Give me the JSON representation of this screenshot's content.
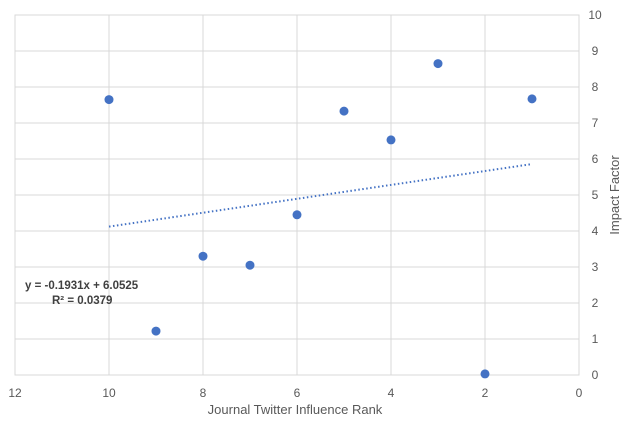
{
  "chart_data": {
    "type": "scatter",
    "title": "",
    "xlabel": "Journal Twitter Influence Rank",
    "ylabel": "Impact Factor",
    "xlim": [
      12,
      0
    ],
    "ylim": [
      0,
      10
    ],
    "x_reversed": true,
    "y_axis_side": "right",
    "x_ticks": [
      12,
      10,
      8,
      6,
      4,
      2,
      0
    ],
    "y_ticks": [
      0,
      1,
      2,
      3,
      4,
      5,
      6,
      7,
      8,
      9,
      10
    ],
    "grid": true,
    "series": [
      {
        "x": [
          10,
          9,
          8,
          7,
          6,
          5,
          4,
          3,
          2,
          1
        ],
        "y": [
          7.65,
          1.22,
          3.3,
          3.05,
          4.45,
          7.33,
          6.53,
          8.65,
          0.03,
          7.67
        ],
        "color": "#4472C4"
      }
    ],
    "trendline": {
      "type": "linear",
      "slope": -0.1931,
      "intercept": 6.0525,
      "x_range": [
        10,
        1
      ],
      "style": "dotted",
      "color": "#4472C4",
      "equation_text": "y = -0.1931x + 6.0525",
      "r2_text": "R² = 0.0379"
    }
  }
}
